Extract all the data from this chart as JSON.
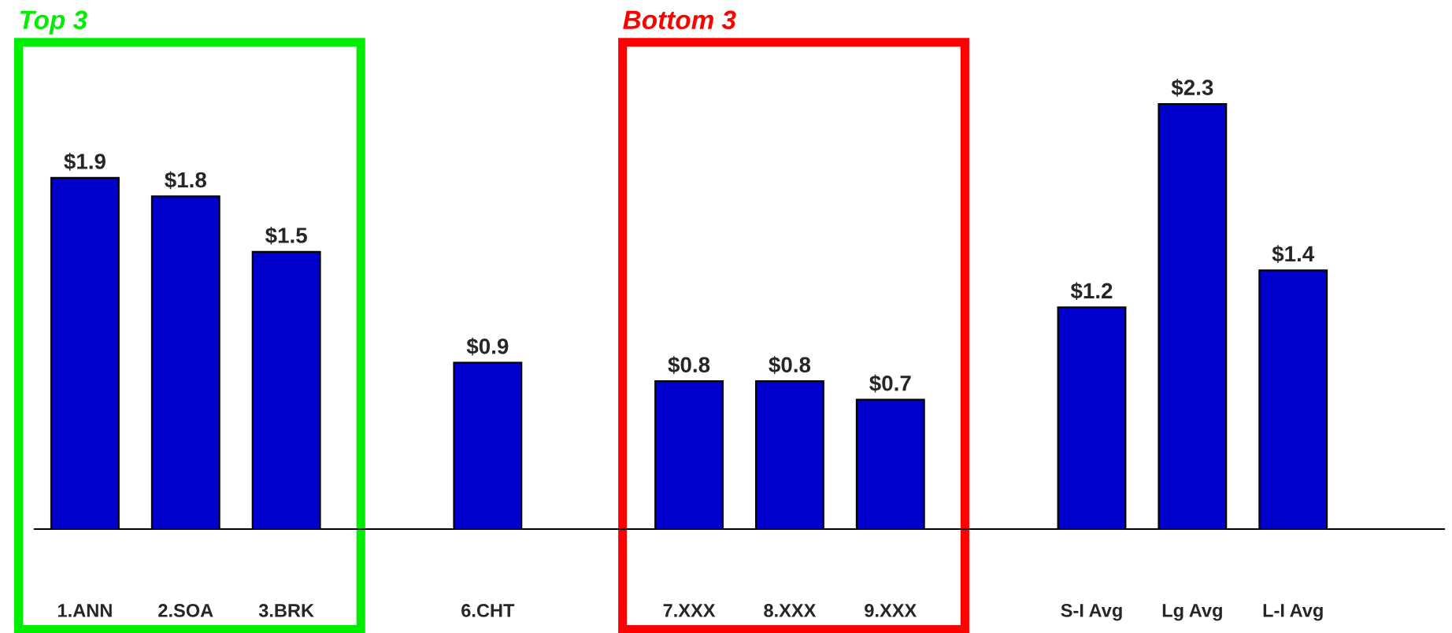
{
  "chart_data": {
    "type": "bar",
    "categories": [
      "1.ANN",
      "2.SOA",
      "3.BRK",
      null,
      "6.CHT",
      null,
      "7.XXX",
      "8.XXX",
      "9.XXX",
      null,
      "S-I Avg",
      "Lg Avg",
      "L-I Avg",
      null
    ],
    "values": [
      1.9,
      1.8,
      1.5,
      null,
      0.9,
      null,
      0.8,
      0.8,
      0.7,
      null,
      1.2,
      2.3,
      1.4,
      null
    ],
    "value_labels": [
      "$1.9",
      "$1.8",
      "$1.5",
      null,
      "$0.9",
      null,
      "$0.8",
      "$0.8",
      "$0.7",
      null,
      "$1.2",
      "$2.3",
      "$1.4",
      null
    ],
    "color": "#0000cc",
    "annotations": [
      "Top 3",
      "Bottom 3"
    ],
    "grid": false,
    "legend": false
  }
}
